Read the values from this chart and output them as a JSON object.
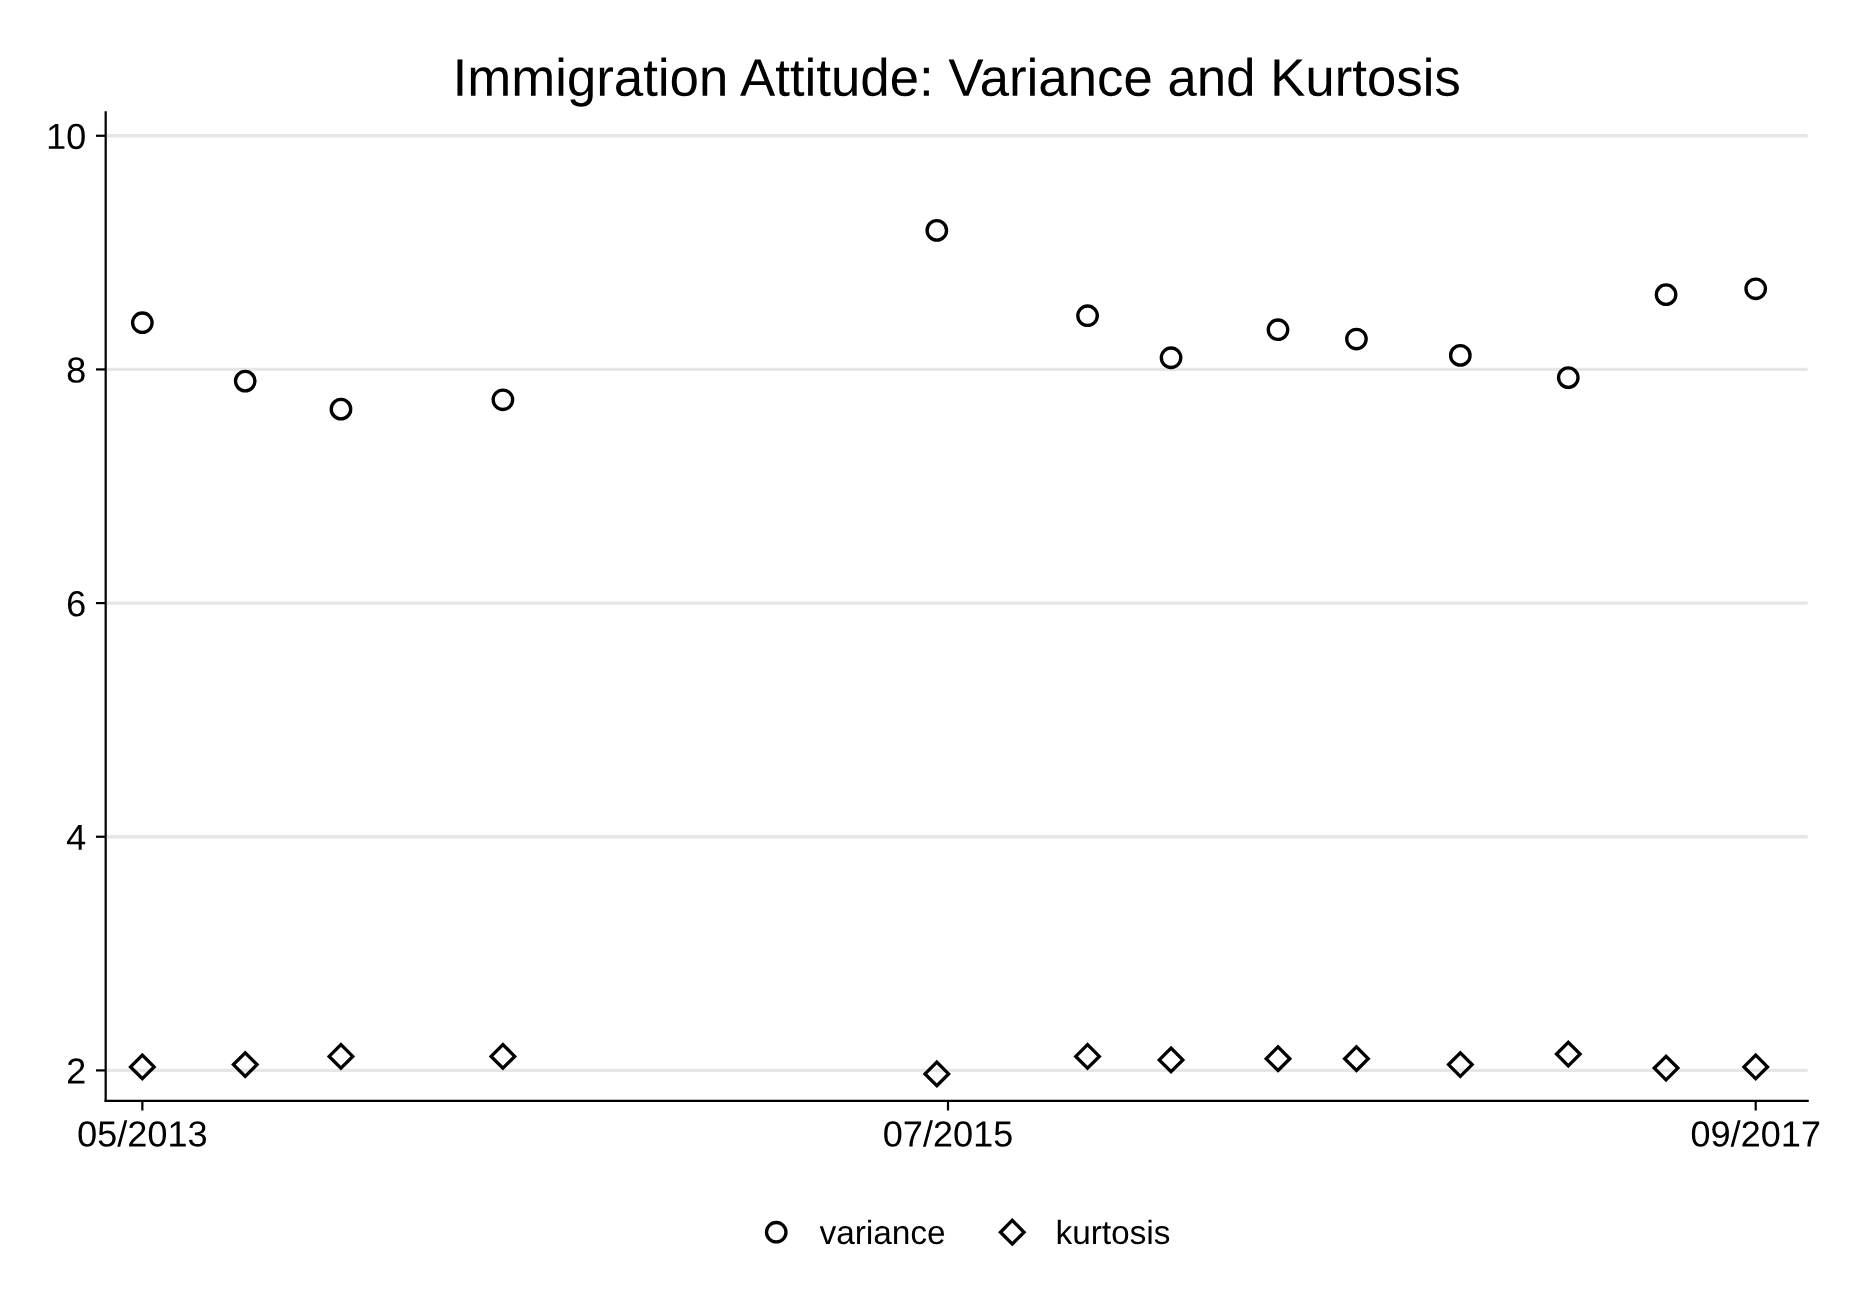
{
  "chart_data": {
    "type": "scatter",
    "title": "Immigration Attitude: Variance and Kurtosis",
    "x": [
      "2013-05-01",
      "2013-08-10",
      "2013-11-12",
      "2014-04-20",
      "2015-06-20",
      "2015-11-15",
      "2016-02-05",
      "2016-05-20",
      "2016-08-05",
      "2016-11-15",
      "2017-03-01",
      "2017-06-05",
      "2017-09-01"
    ],
    "series": [
      {
        "name": "variance",
        "color": "#000000",
        "marker": "circle",
        "values": [
          8.4,
          7.9,
          7.66,
          7.74,
          9.19,
          8.46,
          8.1,
          8.34,
          8.26,
          8.12,
          7.93,
          8.64,
          8.69
        ]
      },
      {
        "name": "kurtosis",
        "color": "#000000",
        "marker": "diamond",
        "values": [
          2.03,
          2.05,
          2.12,
          2.12,
          1.97,
          2.12,
          2.09,
          2.1,
          2.1,
          2.05,
          2.14,
          2.02,
          2.03
        ]
      }
    ],
    "xlim": [
      "2013-03-26",
      "2017-10-22"
    ],
    "ylim": [
      1.74,
      10.2
    ],
    "xticks": [
      {
        "value": "2013-05-01",
        "label": "05/2013"
      },
      {
        "value": "2015-07-01",
        "label": "07/2015"
      },
      {
        "value": "2017-09-01",
        "label": "09/2017"
      }
    ],
    "yticks": [
      2,
      4,
      6,
      8,
      10
    ],
    "grid": "y",
    "legend": "bottom"
  }
}
